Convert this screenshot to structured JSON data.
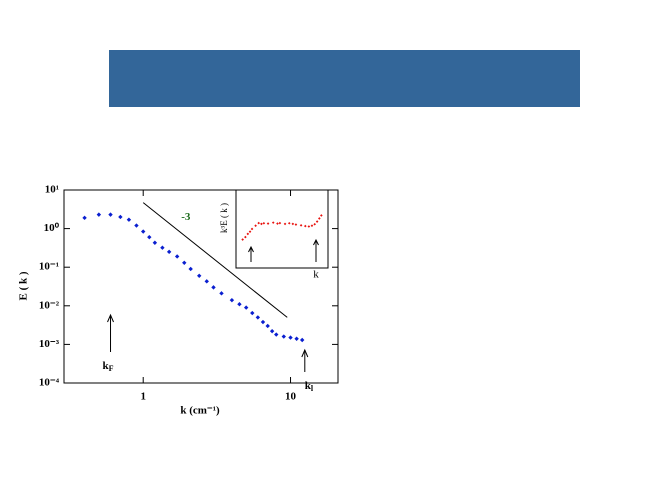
{
  "chart_data": [
    {
      "type": "scatter",
      "log_x": true,
      "log_y": true,
      "x_label": "k (cm⁻¹)",
      "y_label": "E ( k )",
      "xlim": [
        0.29,
        21
      ],
      "ylim": [
        0.0001,
        10
      ],
      "xticks": [
        1,
        10
      ],
      "yticks": [
        {
          "value": 10,
          "label": "10¹"
        },
        {
          "value": 1,
          "label": "10⁰"
        },
        {
          "value": 0.1,
          "label": "10⁻¹"
        },
        {
          "value": 0.01,
          "label": "10⁻²"
        },
        {
          "value": 0.001,
          "label": "10⁻³"
        },
        {
          "value": 0.0001,
          "label": "10⁻⁴"
        }
      ],
      "series": [
        {
          "color": "#0a1fd0",
          "x": [
            0.4,
            0.5,
            0.6,
            0.7,
            0.8,
            0.9,
            1.0,
            1.1,
            1.2,
            1.35,
            1.5,
            1.7,
            1.9,
            2.1,
            2.4,
            2.7,
            3.0,
            3.4,
            4.0,
            4.5,
            5.0,
            5.5,
            6.0,
            6.5,
            7.0,
            7.5,
            8.0,
            9.0,
            10.0,
            11.0,
            12.0
          ],
          "values": [
            1.9,
            2.3,
            2.3,
            2.0,
            1.7,
            1.2,
            0.84,
            0.6,
            0.43,
            0.32,
            0.25,
            0.19,
            0.13,
            0.09,
            0.06,
            0.043,
            0.03,
            0.021,
            0.014,
            0.011,
            0.009,
            0.0065,
            0.005,
            0.0038,
            0.003,
            0.0022,
            0.0018,
            0.0016,
            0.0015,
            0.0014,
            0.0013
          ]
        }
      ],
      "reference_line": {
        "x": [
          1.0,
          9.5
        ],
        "values": [
          4.7,
          0.005
        ],
        "label": "-3"
      },
      "annotations": [
        {
          "text": "k",
          "sub": "F",
          "x": 0.6
        },
        {
          "text": "k",
          "sub": "l",
          "x": 12.5
        }
      ]
    },
    {
      "type": "scatter",
      "inset": true,
      "log_x": true,
      "log_y": true,
      "x_label": "k",
      "y_label": "k³E ( k )",
      "xlim": [
        0.3,
        16
      ],
      "ylim": [
        0.03,
        10
      ],
      "series": [
        {
          "color": "#e8130f",
          "x": [
            0.4,
            0.45,
            0.5,
            0.55,
            0.6,
            0.7,
            0.8,
            0.9,
            1.0,
            1.2,
            1.5,
            1.8,
            2.0,
            2.5,
            3.0,
            3.5,
            4.0,
            5.0,
            6.0,
            7.0,
            8.0,
            9.0,
            10.0,
            11.0,
            12.0
          ],
          "values": [
            0.25,
            0.3,
            0.38,
            0.45,
            0.55,
            0.7,
            0.85,
            0.8,
            0.84,
            0.82,
            0.88,
            0.82,
            0.85,
            0.8,
            0.84,
            0.8,
            0.76,
            0.72,
            0.68,
            0.66,
            0.7,
            0.78,
            0.95,
            1.2,
            1.5
          ]
        }
      ]
    }
  ]
}
